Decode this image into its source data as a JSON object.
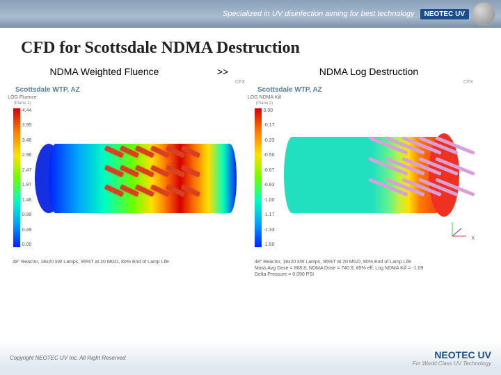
{
  "topbar": {
    "tagline": "Specialized in UV disinfection aiming for best technology",
    "brand": "NEOTEC UV"
  },
  "title": "CFD for Scottsdale NDMA Destruction",
  "subtitles": {
    "left": "NDMA Weighted Fluence",
    "sep": ">>",
    "right": "NDMA Log Destruction"
  },
  "figLeft": {
    "caption": "Scottsdale WTP, AZ",
    "cfx": "CFX",
    "legendTitle": "LOG Fluence",
    "legendSub": "(Plane 1)",
    "colorbar": {
      "stops": [
        "#d40000",
        "#ff7a00",
        "#ffe000",
        "#6cff00",
        "#00ffbf",
        "#00a0ff",
        "#0020ff"
      ],
      "ticks": [
        "4.44",
        "3.95",
        "3.46",
        "2.96",
        "2.47",
        "1.97",
        "1.48",
        "0.99",
        "0.49",
        "0.00"
      ]
    },
    "cylinder": {
      "main": "linear-gradient(90deg,#0020ff 0%,#00a0ff 15%,#00ffbf 30%,#6cff00 45%,#ffe000 55%,#ff7a00 62%,#d40000 70%,#ff7a00 78%,#ffe000 85%,#00ffbf 93%,#0020ff 100%)",
      "endcap": "#1430e0"
    },
    "footnote": "48\" Reactor, 18x20 kW Lamps, 95%T at 20 MGD, 80% End of Lamp Life"
  },
  "figRight": {
    "caption": "Scottsdale WTP, AZ",
    "cfx": "CFX",
    "legendTitle": "LOG NDMA Kill",
    "legendSub": "(Plane 2)",
    "colorbar": {
      "stops": [
        "#d40000",
        "#ff7a00",
        "#ffe000",
        "#6cff00",
        "#00ffbf",
        "#00a0ff",
        "#0020ff"
      ],
      "ticks": [
        "0.00",
        "-0.17",
        "-0.33",
        "-0.50",
        "-0.67",
        "-0.83",
        "-1.00",
        "-1.17",
        "-1.33",
        "-1.50"
      ]
    },
    "cylinder": {
      "main": "linear-gradient(90deg,#20e0c0 0%,#20e0c0 55%,#60f090 65%,#c0f040 72%,#ffe000 78%,#ff7a00 85%,#f03020 100%)",
      "endcap": "#f03020"
    },
    "footnote1": "48\" Reactor, 18x20 kW Lamps, 95%T at 20 MGD, 80% End of Lamp Life",
    "footnote2": "Mass Avg Dose = 868.8; NDMA Dose = 740.9, 85% eff; Log NDMA Kill = -1.09",
    "footnote3": "Delta Pressure = 0.090 PSI",
    "axis": "X"
  },
  "footer": {
    "copyright": "Copyright NEOTEC UV Inc. All Right Reserved",
    "brand": "NEOTEC UV",
    "tag": "For World Class UV Technology"
  }
}
